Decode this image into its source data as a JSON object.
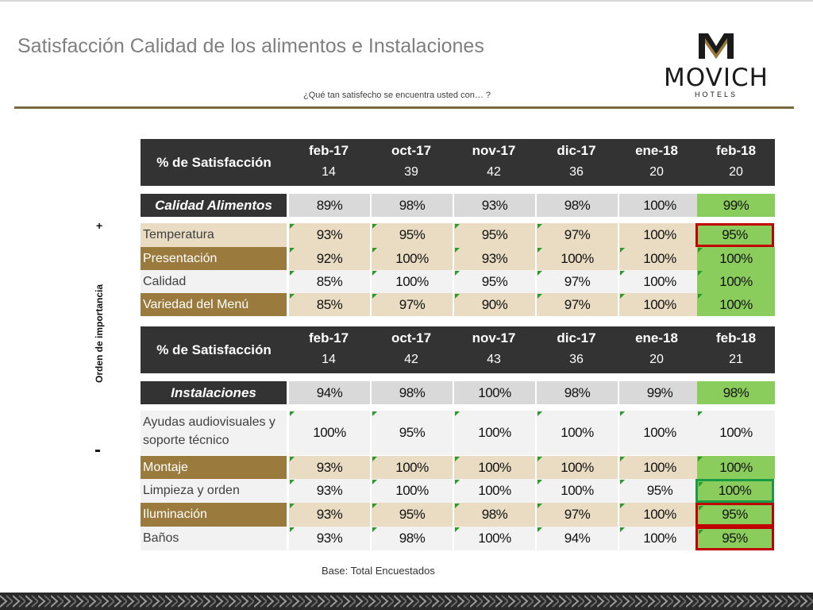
{
  "title": "Satisfacción Calidad de los alimentos e Instalaciones",
  "subtitle": "¿Qué tan satisfecho se encuentra usted con… ?",
  "logo": {
    "name": "MOVICH",
    "sub": "HOTELS"
  },
  "axis": {
    "label": "Orden de importancia",
    "plus": "+",
    "minus": "-"
  },
  "base": "Base: Total Encuestados",
  "colors": {
    "header": "#333333",
    "highlight": "#8bcd5c",
    "brown": "#9b7b3d",
    "beige": "#e9dcc2",
    "red": "#c00000",
    "green_border": "#1a9a45"
  },
  "tables": [
    {
      "header_label": "% de Satisfacción",
      "months": [
        "feb-17",
        "oct-17",
        "nov-17",
        "dic-17",
        "ene-18",
        "feb-18"
      ],
      "counts": [
        "14",
        "39",
        "42",
        "36",
        "20",
        "20"
      ],
      "section": {
        "label": "Calidad Alimentos",
        "values": [
          "89%",
          "98%",
          "93%",
          "98%",
          "100%",
          "99%"
        ]
      },
      "rows": [
        {
          "label": "Temperatura",
          "values": [
            "93%",
            "95%",
            "95%",
            "97%",
            "100%",
            "95%"
          ]
        },
        {
          "label": "Presentación",
          "values": [
            "92%",
            "100%",
            "93%",
            "100%",
            "100%",
            "100%"
          ]
        },
        {
          "label": "Calidad",
          "values": [
            "85%",
            "100%",
            "95%",
            "97%",
            "100%",
            "100%"
          ]
        },
        {
          "label": "Variedad del Menú",
          "values": [
            "85%",
            "97%",
            "90%",
            "97%",
            "100%",
            "100%"
          ]
        }
      ]
    },
    {
      "header_label": "% de Satisfacción",
      "months": [
        "feb-17",
        "oct-17",
        "nov-17",
        "dic-17",
        "ene-18",
        "feb-18"
      ],
      "counts": [
        "14",
        "42",
        "43",
        "36",
        "20",
        "21"
      ],
      "section": {
        "label": "Instalaciones",
        "values": [
          "94%",
          "98%",
          "100%",
          "98%",
          "99%",
          "98%"
        ]
      },
      "rows": [
        {
          "label": "Ayudas audiovisuales y soporte técnico",
          "values": [
            "100%",
            "95%",
            "100%",
            "100%",
            "100%",
            "100%"
          ]
        },
        {
          "label": "Montaje",
          "values": [
            "93%",
            "100%",
            "100%",
            "100%",
            "100%",
            "100%"
          ]
        },
        {
          "label": "Limpieza y orden",
          "values": [
            "93%",
            "100%",
            "100%",
            "100%",
            "95%",
            "100%"
          ]
        },
        {
          "label": "Iluminación",
          "values": [
            "93%",
            "95%",
            "98%",
            "97%",
            "100%",
            "95%"
          ]
        },
        {
          "label": "Baños",
          "values": [
            "93%",
            "98%",
            "100%",
            "94%",
            "100%",
            "95%"
          ]
        }
      ]
    }
  ]
}
